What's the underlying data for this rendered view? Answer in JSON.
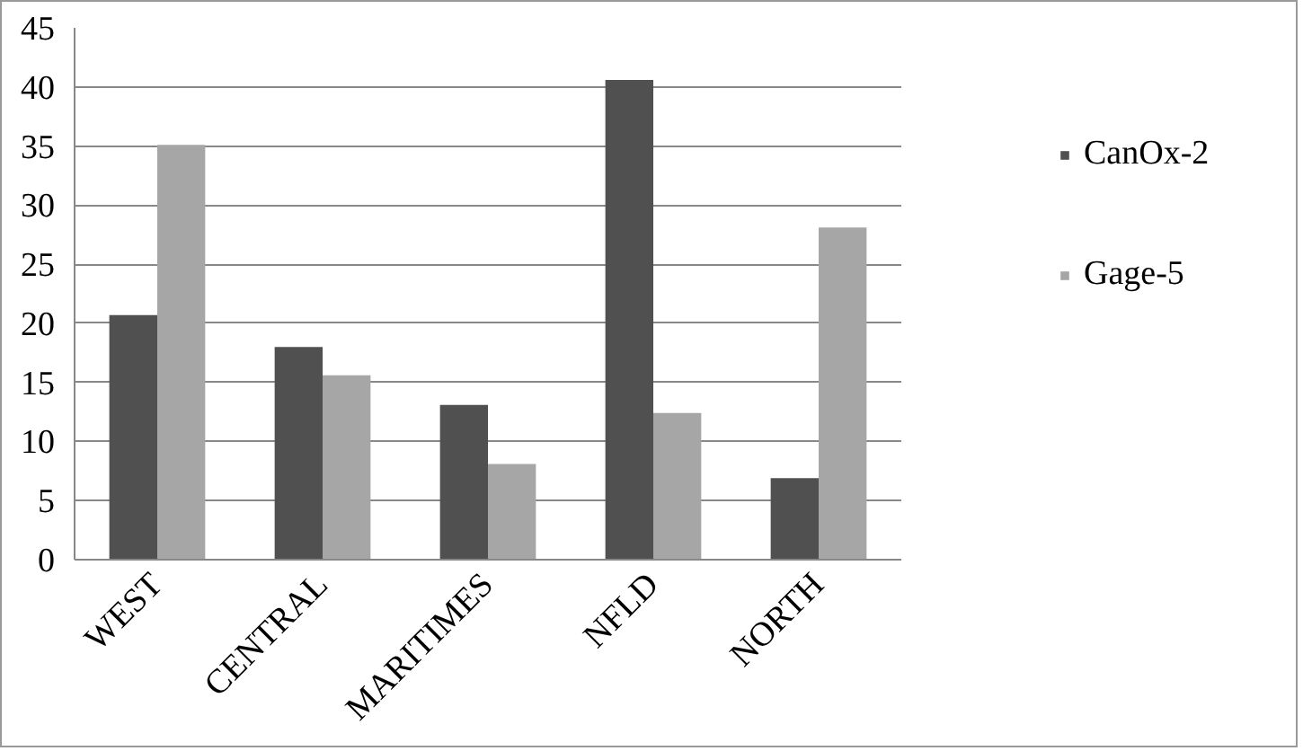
{
  "chart_data": {
    "type": "bar",
    "categories": [
      "WEST",
      "CENTRAL",
      "MARITIMES",
      "NFLD",
      "NORTH"
    ],
    "series": [
      {
        "name": "CanOx-2",
        "color": "#505050",
        "values": [
          20.7,
          18.0,
          13.1,
          40.6,
          6.9
        ]
      },
      {
        "name": "Gage-5",
        "color": "#a6a6a6",
        "values": [
          35.1,
          15.6,
          8.1,
          12.4,
          28.1
        ]
      }
    ],
    "ylim": [
      0,
      45
    ],
    "yticks": [
      0,
      5,
      10,
      15,
      20,
      25,
      30,
      35,
      40,
      45
    ],
    "grid": "y",
    "legend": "right"
  }
}
